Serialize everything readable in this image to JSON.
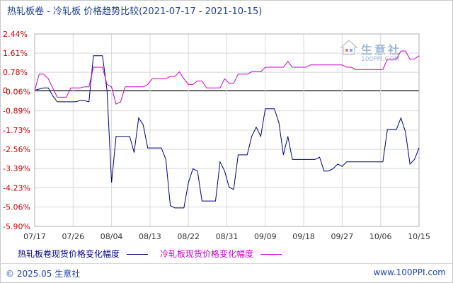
{
  "header": {
    "title": "热轧板卷 - 冷轧板 价格趋势比较(2021-07-17 - 2021-10-15)"
  },
  "watermark": {
    "brand": "生意社",
    "url": "100PPI.COM",
    "icon": "house-logo-icon"
  },
  "footer": {
    "copyright": "© 2025.05 生意社",
    "site": "www.100PPI.com"
  },
  "colors": {
    "series_hot": "#000080",
    "series_cold": "#cc00cc",
    "grid": "#d8d8d8",
    "axis_text": "#cc0000",
    "zero_line": "#000000"
  },
  "chart_data": {
    "type": "line",
    "title": "热轧板卷 - 冷轧板 价格趋势比较(2021-07-17 - 2021-10-15)",
    "xlabel": "",
    "ylabel": "",
    "x_ticks": [
      "07/17",
      "07/26",
      "08/04",
      "08/13",
      "08/22",
      "08/31",
      "09/09",
      "09/18",
      "09/27",
      "10/06",
      "10/15"
    ],
    "y_ticks": [
      "2.44%",
      "1.61%",
      "0.78%",
      "-0.06%",
      "-0.89%",
      "-1.73%",
      "-2.56%",
      "-3.39%",
      "-4.23%",
      "-5.06%",
      "-5.90%"
    ],
    "y_tick_values": [
      2.44,
      1.61,
      0.78,
      -0.06,
      -0.89,
      -1.73,
      -2.56,
      -3.39,
      -4.23,
      -5.06,
      -5.9
    ],
    "ylim": [
      -5.9,
      2.44
    ],
    "zero_label": "0",
    "grid": true,
    "legend_position": "bottom",
    "series": [
      {
        "name": "热轧板卷现货价格变化幅度",
        "values": [
          [
            0,
            0.0
          ],
          [
            1,
            0.05
          ],
          [
            2,
            0.1
          ],
          [
            3,
            0.1
          ],
          [
            4,
            -0.25
          ],
          [
            5,
            -0.5
          ],
          [
            6,
            -0.5
          ],
          [
            7,
            -0.5
          ],
          [
            8,
            -0.5
          ],
          [
            9,
            -0.5
          ],
          [
            10,
            -0.45
          ],
          [
            11,
            -0.45
          ],
          [
            12,
            -0.5
          ],
          [
            13,
            1.5
          ],
          [
            14,
            1.5
          ],
          [
            15,
            1.5
          ],
          [
            16,
            0.0
          ],
          [
            17,
            -4.0
          ],
          [
            18,
            -2.0
          ],
          [
            19,
            -2.0
          ],
          [
            20,
            -2.0
          ],
          [
            21,
            -2.0
          ],
          [
            22,
            -2.7
          ],
          [
            23,
            -1.2
          ],
          [
            24,
            -1.5
          ],
          [
            25,
            -2.5
          ],
          [
            26,
            -2.5
          ],
          [
            27,
            -2.5
          ],
          [
            28,
            -2.5
          ],
          [
            29,
            -3.0
          ],
          [
            30,
            -5.0
          ],
          [
            31,
            -5.1
          ],
          [
            32,
            -5.1
          ],
          [
            33,
            -5.1
          ],
          [
            34,
            -4.0
          ],
          [
            35,
            -3.4
          ],
          [
            36,
            -3.5
          ],
          [
            37,
            -4.8
          ],
          [
            38,
            -4.8
          ],
          [
            39,
            -4.8
          ],
          [
            40,
            -4.8
          ],
          [
            41,
            -3.1
          ],
          [
            42,
            -3.5
          ],
          [
            43,
            -4.2
          ],
          [
            44,
            -4.3
          ],
          [
            45,
            -2.8
          ],
          [
            46,
            -2.8
          ],
          [
            47,
            -2.8
          ],
          [
            48,
            -2.0
          ],
          [
            49,
            -1.6
          ],
          [
            50,
            -2.0
          ],
          [
            51,
            -0.8
          ],
          [
            52,
            -0.8
          ],
          [
            53,
            -0.8
          ],
          [
            54,
            -1.4
          ],
          [
            55,
            -2.8
          ],
          [
            56,
            -2.0
          ],
          [
            57,
            -3.0
          ],
          [
            58,
            -3.0
          ],
          [
            59,
            -3.0
          ],
          [
            60,
            -3.0
          ],
          [
            61,
            -3.0
          ],
          [
            62,
            -3.0
          ],
          [
            63,
            -2.9
          ],
          [
            64,
            -3.5
          ],
          [
            65,
            -3.5
          ],
          [
            66,
            -3.4
          ],
          [
            67,
            -3.2
          ],
          [
            68,
            -3.3
          ],
          [
            69,
            -3.1
          ],
          [
            70,
            -3.1
          ],
          [
            71,
            -3.1
          ],
          [
            72,
            -3.1
          ],
          [
            73,
            -3.1
          ],
          [
            74,
            -3.1
          ],
          [
            75,
            -3.1
          ],
          [
            76,
            -3.1
          ],
          [
            77,
            -3.1
          ],
          [
            78,
            -1.7
          ],
          [
            79,
            -1.7
          ],
          [
            80,
            -1.7
          ],
          [
            81,
            -1.2
          ],
          [
            82,
            -1.8
          ],
          [
            83,
            -3.2
          ],
          [
            84,
            -3.0
          ],
          [
            85,
            -2.5
          ]
        ]
      },
      {
        "name": "冷轧板现货价格变化幅度",
        "values": [
          [
            0,
            0.0
          ],
          [
            1,
            0.7
          ],
          [
            2,
            0.7
          ],
          [
            3,
            0.5
          ],
          [
            4,
            0.1
          ],
          [
            5,
            -0.3
          ],
          [
            6,
            -0.3
          ],
          [
            7,
            -0.3
          ],
          [
            8,
            0.1
          ],
          [
            9,
            0.1
          ],
          [
            10,
            0.1
          ],
          [
            11,
            0.15
          ],
          [
            12,
            0.15
          ],
          [
            13,
            1.0
          ],
          [
            14,
            1.0
          ],
          [
            15,
            1.0
          ],
          [
            16,
            0.25
          ],
          [
            17,
            0.15
          ],
          [
            18,
            -0.6
          ],
          [
            19,
            -0.5
          ],
          [
            20,
            0.15
          ],
          [
            21,
            0.15
          ],
          [
            22,
            0.15
          ],
          [
            23,
            0.15
          ],
          [
            24,
            0.15
          ],
          [
            25,
            0.25
          ],
          [
            26,
            0.5
          ],
          [
            27,
            0.5
          ],
          [
            28,
            0.5
          ],
          [
            29,
            0.5
          ],
          [
            30,
            0.6
          ],
          [
            31,
            0.6
          ],
          [
            32,
            0.8
          ],
          [
            33,
            0.5
          ],
          [
            34,
            0.25
          ],
          [
            35,
            0.25
          ],
          [
            36,
            0.4
          ],
          [
            37,
            0.4
          ],
          [
            38,
            0.1
          ],
          [
            39,
            0.1
          ],
          [
            40,
            0.1
          ],
          [
            41,
            0.1
          ],
          [
            42,
            0.5
          ],
          [
            43,
            0.3
          ],
          [
            44,
            0.3
          ],
          [
            45,
            0.7
          ],
          [
            46,
            0.7
          ],
          [
            47,
            0.7
          ],
          [
            48,
            0.8
          ],
          [
            49,
            0.8
          ],
          [
            50,
            0.8
          ],
          [
            51,
            1.0
          ],
          [
            52,
            1.0
          ],
          [
            53,
            1.0
          ],
          [
            54,
            1.0
          ],
          [
            55,
            1.0
          ],
          [
            56,
            1.25
          ],
          [
            57,
            1.0
          ],
          [
            58,
            1.0
          ],
          [
            59,
            1.0
          ],
          [
            60,
            1.0
          ],
          [
            61,
            1.1
          ],
          [
            62,
            1.1
          ],
          [
            63,
            1.1
          ],
          [
            64,
            1.1
          ],
          [
            65,
            1.1
          ],
          [
            66,
            1.1
          ],
          [
            67,
            1.1
          ],
          [
            68,
            1.1
          ],
          [
            69,
            1.0
          ],
          [
            70,
            1.0
          ],
          [
            71,
            0.9
          ],
          [
            72,
            0.9
          ],
          [
            73,
            0.9
          ],
          [
            74,
            0.9
          ],
          [
            75,
            0.9
          ],
          [
            76,
            0.9
          ],
          [
            77,
            0.9
          ],
          [
            78,
            1.35
          ],
          [
            79,
            1.35
          ],
          [
            80,
            1.35
          ],
          [
            81,
            1.7
          ],
          [
            82,
            1.7
          ],
          [
            83,
            1.35
          ],
          [
            84,
            1.35
          ],
          [
            85,
            1.5
          ]
        ]
      }
    ]
  }
}
